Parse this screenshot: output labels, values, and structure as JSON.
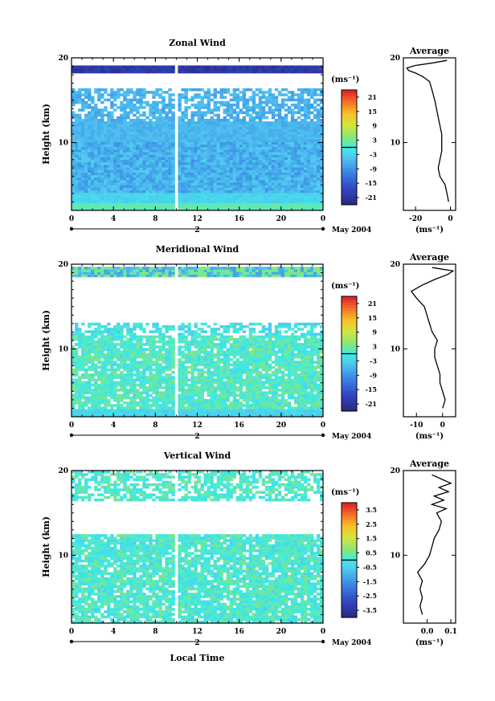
{
  "chart_data": [
    {
      "type": "heatmap",
      "title": "Zonal Wind",
      "ylabel": "Height (km)",
      "xlabel": "",
      "xlim": [
        0,
        24
      ],
      "ylim": [
        2,
        20
      ],
      "x_ticks": [
        "0",
        "4",
        "8",
        "12",
        "16",
        "20",
        "0"
      ],
      "y_ticks": [
        "10",
        "20"
      ],
      "date_axis": {
        "day": "2",
        "month_label": "May 2004"
      },
      "colorbar": {
        "unit": "(ms⁻¹)",
        "ticks": [
          "21",
          "15",
          "9",
          "3",
          "-3",
          "-9",
          "-15",
          "-21"
        ],
        "range": [
          -24,
          24
        ]
      },
      "profile": {
        "title": "Average",
        "xlabel": "(ms⁻¹)",
        "x_ticks": [
          "-20",
          "0"
        ],
        "y_ticks": [
          "10",
          "20"
        ],
        "xlim": [
          -27,
          3
        ],
        "values": [
          [
            -1,
            3.0
          ],
          [
            -2,
            4.0
          ],
          [
            -3,
            5.0
          ],
          [
            -6,
            6.0
          ],
          [
            -7,
            7.0
          ],
          [
            -6,
            8.0
          ],
          [
            -5,
            9.0
          ],
          [
            -5,
            10.0
          ],
          [
            -5,
            11.0
          ],
          [
            -6,
            12.0
          ],
          [
            -7,
            13.0
          ],
          [
            -8,
            14.0
          ],
          [
            -9,
            15.0
          ],
          [
            -10,
            15.8
          ],
          [
            -11,
            16.5
          ],
          [
            -12,
            17.2
          ],
          [
            -16,
            17.8
          ],
          [
            -20,
            18.2
          ],
          [
            -24,
            18.5
          ],
          [
            -25,
            18.8
          ],
          [
            -20,
            19.1
          ],
          [
            -10,
            19.4
          ],
          [
            -2,
            19.7
          ]
        ]
      }
    },
    {
      "type": "heatmap",
      "title": "Meridional Wind",
      "ylabel": "Height (km)",
      "xlabel": "",
      "xlim": [
        0,
        24
      ],
      "ylim": [
        2,
        20
      ],
      "x_ticks": [
        "0",
        "4",
        "8",
        "12",
        "16",
        "20",
        "0"
      ],
      "y_ticks": [
        "10",
        "20"
      ],
      "date_axis": {
        "day": "2",
        "month_label": "May 2004"
      },
      "colorbar": {
        "unit": "(ms⁻¹)",
        "ticks": [
          "21",
          "15",
          "9",
          "3",
          "-3",
          "-9",
          "-15",
          "-21"
        ],
        "range": [
          -24,
          24
        ]
      },
      "profile": {
        "title": "Average",
        "xlabel": "(ms⁻¹)",
        "x_ticks": [
          "-10",
          "0"
        ],
        "y_ticks": [
          "10",
          "20"
        ],
        "xlim": [
          -15,
          5
        ],
        "values": [
          [
            0,
            3.0
          ],
          [
            1,
            4.0
          ],
          [
            0,
            5.0
          ],
          [
            -1,
            6.0
          ],
          [
            -1,
            7.0
          ],
          [
            -2,
            8.0
          ],
          [
            -3,
            9.0
          ],
          [
            -3,
            10.0
          ],
          [
            -2,
            11.0
          ],
          [
            -4,
            12.0
          ],
          [
            -5,
            13.0
          ],
          [
            -6,
            14.0
          ],
          [
            -7,
            15.0
          ],
          [
            -10,
            16.0
          ],
          [
            -12,
            16.8
          ],
          [
            -8,
            17.5
          ],
          [
            -3,
            18.2
          ],
          [
            2,
            18.8
          ],
          [
            4,
            19.2
          ],
          [
            -4,
            19.6
          ]
        ]
      }
    },
    {
      "type": "heatmap",
      "title": "Vertical Wind",
      "ylabel": "Height (km)",
      "xlabel": "Local Time",
      "xlim": [
        0,
        24
      ],
      "ylim": [
        2,
        20
      ],
      "x_ticks": [
        "0",
        "4",
        "8",
        "12",
        "16",
        "20",
        "0"
      ],
      "y_ticks": [
        "10",
        "20"
      ],
      "date_axis": {
        "day": "2",
        "month_label": "May 2004"
      },
      "colorbar": {
        "unit": "(ms⁻¹)",
        "ticks": [
          "3.5",
          "2.5",
          "1.5",
          "0.5",
          "-0.5",
          "-1.5",
          "-2.5",
          "-3.5"
        ],
        "range": [
          -4,
          4
        ]
      },
      "profile": {
        "title": "Average",
        "xlabel": "(ms⁻¹)",
        "x_ticks": [
          "0.0",
          "0.1"
        ],
        "y_ticks": [
          "10",
          "20"
        ],
        "xlim": [
          -0.1,
          0.12
        ],
        "values": [
          [
            -0.02,
            3.0
          ],
          [
            -0.03,
            4.0
          ],
          [
            -0.02,
            5.0
          ],
          [
            -0.03,
            6.0
          ],
          [
            -0.02,
            7.0
          ],
          [
            -0.04,
            8.0
          ],
          [
            -0.01,
            9.0
          ],
          [
            0.01,
            10.0
          ],
          [
            0.02,
            11.0
          ],
          [
            0.03,
            12.0
          ],
          [
            0.05,
            13.0
          ],
          [
            0.06,
            14.0
          ],
          [
            0.04,
            15.0
          ],
          [
            0.08,
            15.5
          ],
          [
            0.02,
            16.0
          ],
          [
            0.07,
            16.5
          ],
          [
            0.03,
            17.0
          ],
          [
            0.09,
            17.5
          ],
          [
            0.05,
            18.0
          ],
          [
            0.1,
            18.5
          ],
          [
            0.06,
            19.0
          ],
          [
            0.02,
            19.5
          ]
        ]
      }
    }
  ]
}
